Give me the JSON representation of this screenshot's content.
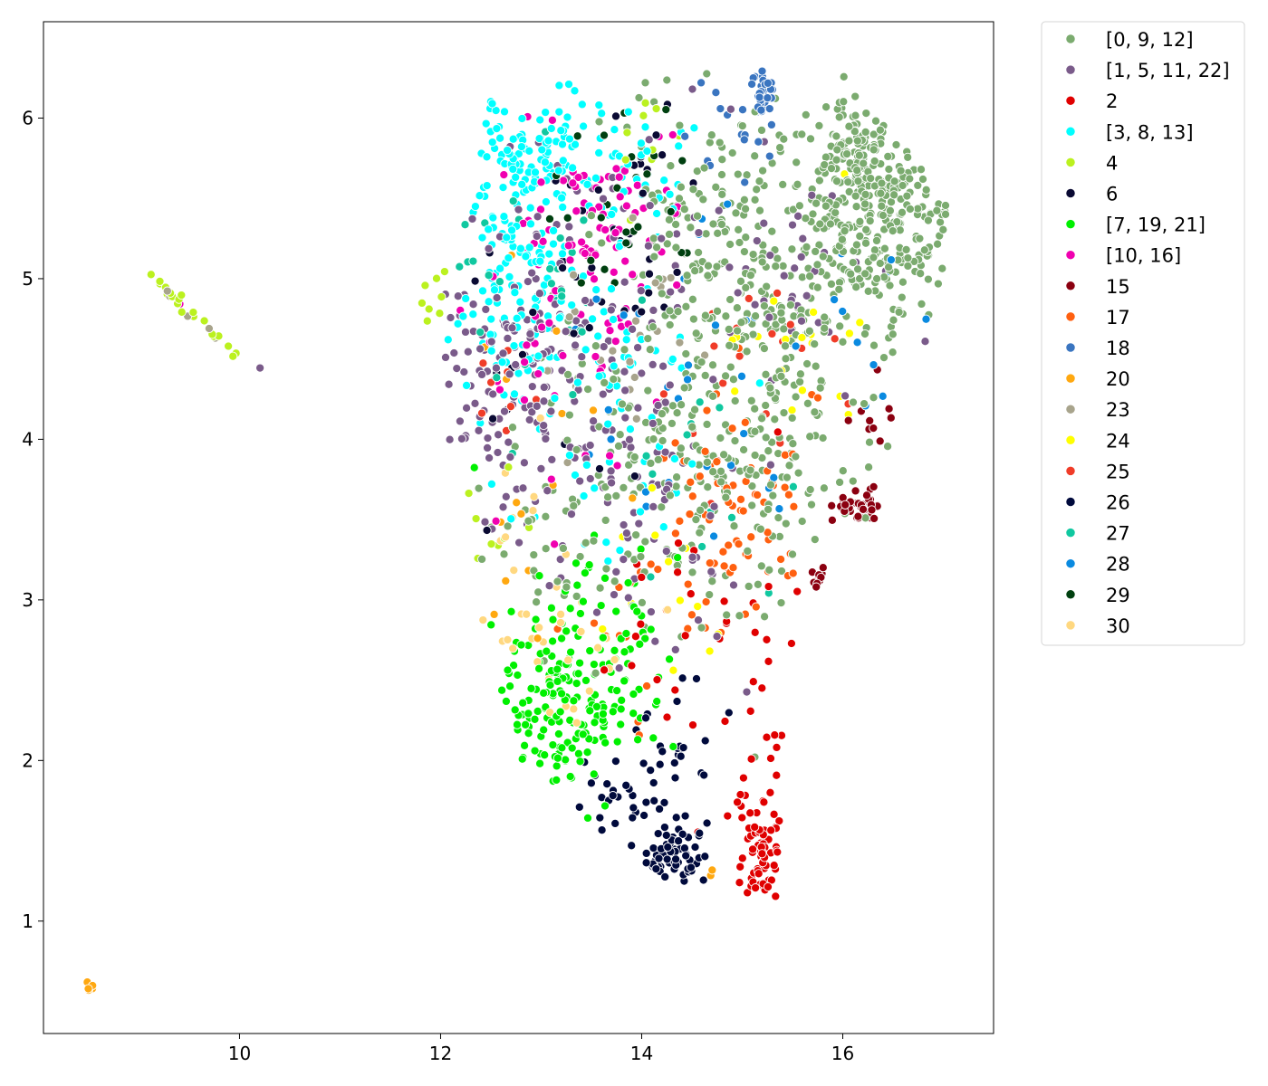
{
  "chart_data": {
    "type": "scatter",
    "title": "",
    "xlabel": "",
    "ylabel": "",
    "xlim": [
      8.05,
      17.5
    ],
    "ylim": [
      0.3,
      6.6
    ],
    "xticks": [
      10,
      12,
      14,
      16
    ],
    "yticks": [
      1,
      2,
      3,
      4,
      5,
      6
    ],
    "grid": false,
    "legend_placement": "outside-top-right",
    "series": [
      {
        "name": "[0, 9, 12]",
        "color": "#7bab6f",
        "clusters": [
          {
            "cx": 16.3,
            "cy": 5.45,
            "sx": 0.45,
            "sy": 0.35,
            "n": 300
          },
          {
            "cx": 15.2,
            "cy": 4.7,
            "sx": 0.6,
            "sy": 0.5,
            "n": 200
          },
          {
            "cx": 14.6,
            "cy": 5.3,
            "sx": 0.5,
            "sy": 0.5,
            "n": 110
          },
          {
            "cx": 16.2,
            "cy": 5.75,
            "sx": 0.15,
            "sy": 0.12,
            "n": 60
          },
          {
            "cx": 15.3,
            "cy": 3.7,
            "sx": 0.45,
            "sy": 0.4,
            "n": 70
          },
          {
            "cx": 13.5,
            "cy": 3.4,
            "sx": 0.7,
            "sy": 0.6,
            "n": 80
          },
          {
            "cx": 14.2,
            "cy": 4.0,
            "sx": 0.7,
            "sy": 0.5,
            "n": 80
          }
        ]
      },
      {
        "name": "[1, 5, 11, 22]",
        "color": "#7a5b8a",
        "clusters": [
          {
            "cx": 12.6,
            "cy": 4.3,
            "sx": 0.35,
            "sy": 0.4,
            "n": 90
          },
          {
            "cx": 13.5,
            "cy": 4.6,
            "sx": 0.6,
            "sy": 0.6,
            "n": 120
          },
          {
            "cx": 14.0,
            "cy": 3.5,
            "sx": 0.6,
            "sy": 0.5,
            "n": 60
          },
          {
            "cx": 15.5,
            "cy": 5.1,
            "sx": 0.5,
            "sy": 0.4,
            "n": 40
          },
          {
            "cx": 9.8,
            "cy": 4.66,
            "sx": 0.01,
            "sy": 0.01,
            "n": 1
          }
        ]
      },
      {
        "name": "2",
        "color": "#e00000",
        "clusters": [
          {
            "cx": 15.2,
            "cy": 1.4,
            "sx": 0.12,
            "sy": 0.15,
            "n": 60
          },
          {
            "cx": 15.2,
            "cy": 2.0,
            "sx": 0.2,
            "sy": 0.35,
            "n": 25
          },
          {
            "cx": 14.6,
            "cy": 2.8,
            "sx": 0.6,
            "sy": 0.5,
            "n": 30
          }
        ]
      },
      {
        "name": "[3, 8, 13]",
        "color": "#00ffff",
        "clusters": [
          {
            "cx": 12.9,
            "cy": 5.8,
            "sx": 0.35,
            "sy": 0.25,
            "n": 110
          },
          {
            "cx": 12.8,
            "cy": 5.0,
            "sx": 0.4,
            "sy": 0.45,
            "n": 120
          },
          {
            "cx": 13.6,
            "cy": 4.3,
            "sx": 0.5,
            "sy": 0.5,
            "n": 70
          },
          {
            "cx": 13.9,
            "cy": 5.7,
            "sx": 0.3,
            "sy": 0.2,
            "n": 30
          }
        ]
      },
      {
        "name": "4",
        "color": "#bbf11f",
        "clusters": [
          {
            "cx": 9.55,
            "cy": 4.77,
            "sx": 0.15,
            "sy": 0.1,
            "n": 20
          },
          {
            "cx": 11.9,
            "cy": 4.87,
            "sx": 0.08,
            "sy": 0.07,
            "n": 8
          },
          {
            "cx": 14.1,
            "cy": 5.9,
            "sx": 0.2,
            "sy": 0.15,
            "n": 10
          },
          {
            "cx": 12.6,
            "cy": 3.5,
            "sx": 0.2,
            "sy": 0.2,
            "n": 8
          }
        ]
      },
      {
        "name": "6",
        "color": "#0a0a33",
        "clusters": [
          {
            "cx": 13.9,
            "cy": 5.4,
            "sx": 0.5,
            "sy": 0.4,
            "n": 25
          },
          {
            "cx": 13.0,
            "cy": 4.4,
            "sx": 0.6,
            "sy": 0.5,
            "n": 20
          }
        ]
      },
      {
        "name": "[7, 19, 21]",
        "color": "#00f000",
        "clusters": [
          {
            "cx": 13.2,
            "cy": 2.3,
            "sx": 0.3,
            "sy": 0.3,
            "n": 130
          },
          {
            "cx": 13.5,
            "cy": 2.9,
            "sx": 0.4,
            "sy": 0.3,
            "n": 50
          },
          {
            "cx": 13.9,
            "cy": 2.4,
            "sx": 0.3,
            "sy": 0.25,
            "n": 25
          }
        ]
      },
      {
        "name": "[10, 16]",
        "color": "#f000b0",
        "clusters": [
          {
            "cx": 13.5,
            "cy": 5.4,
            "sx": 0.4,
            "sy": 0.3,
            "n": 60
          },
          {
            "cx": 13.3,
            "cy": 4.6,
            "sx": 0.5,
            "sy": 0.5,
            "n": 45
          },
          {
            "cx": 9.3,
            "cy": 4.92,
            "sx": 0.01,
            "sy": 0.01,
            "n": 1
          }
        ]
      },
      {
        "name": "15",
        "color": "#8b0010",
        "clusters": [
          {
            "cx": 16.15,
            "cy": 3.55,
            "sx": 0.13,
            "sy": 0.08,
            "n": 40
          },
          {
            "cx": 15.85,
            "cy": 3.1,
            "sx": 0.05,
            "sy": 0.05,
            "n": 10
          },
          {
            "cx": 16.4,
            "cy": 4.1,
            "sx": 0.15,
            "sy": 0.15,
            "n": 10
          }
        ]
      },
      {
        "name": "17",
        "color": "#ff6010",
        "clusters": [
          {
            "cx": 15.0,
            "cy": 3.6,
            "sx": 0.4,
            "sy": 0.35,
            "n": 60
          },
          {
            "cx": 14.3,
            "cy": 2.9,
            "sx": 0.5,
            "sy": 0.4,
            "n": 25
          }
        ]
      },
      {
        "name": "18",
        "color": "#3a75c0",
        "clusters": [
          {
            "cx": 15.2,
            "cy": 6.15,
            "sx": 0.06,
            "sy": 0.08,
            "n": 30
          },
          {
            "cx": 14.9,
            "cy": 5.9,
            "sx": 0.2,
            "sy": 0.15,
            "n": 15
          }
        ]
      },
      {
        "name": "20",
        "color": "#ffa810",
        "clusters": [
          {
            "cx": 8.5,
            "cy": 0.59,
            "sx": 0.02,
            "sy": 0.02,
            "n": 7
          },
          {
            "cx": 14.7,
            "cy": 1.3,
            "sx": 0.02,
            "sy": 0.02,
            "n": 2
          },
          {
            "cx": 13.0,
            "cy": 3.9,
            "sx": 0.5,
            "sy": 0.5,
            "n": 15
          }
        ]
      },
      {
        "name": "23",
        "color": "#a8a48c",
        "clusters": [
          {
            "cx": 13.9,
            "cy": 4.8,
            "sx": 0.5,
            "sy": 0.5,
            "n": 25
          },
          {
            "cx": 9.35,
            "cy": 4.88,
            "sx": 0.05,
            "sy": 0.03,
            "n": 5
          }
        ]
      },
      {
        "name": "24",
        "color": "#ffff00",
        "clusters": [
          {
            "cx": 15.6,
            "cy": 4.4,
            "sx": 0.4,
            "sy": 0.4,
            "n": 20
          },
          {
            "cx": 14.3,
            "cy": 3.0,
            "sx": 0.4,
            "sy": 0.4,
            "n": 12
          }
        ]
      },
      {
        "name": "25",
        "color": "#f03c28",
        "clusters": [
          {
            "cx": 15.2,
            "cy": 4.2,
            "sx": 0.5,
            "sy": 0.4,
            "n": 18
          },
          {
            "cx": 12.5,
            "cy": 4.3,
            "sx": 0.2,
            "sy": 0.2,
            "n": 8
          }
        ]
      },
      {
        "name": "26",
        "color": "#000a3c",
        "clusters": [
          {
            "cx": 14.3,
            "cy": 1.4,
            "sx": 0.18,
            "sy": 0.1,
            "n": 60
          },
          {
            "cx": 13.9,
            "cy": 1.7,
            "sx": 0.35,
            "sy": 0.2,
            "n": 40
          },
          {
            "cx": 14.4,
            "cy": 2.1,
            "sx": 0.3,
            "sy": 0.2,
            "n": 15
          }
        ]
      },
      {
        "name": "27",
        "color": "#10c8a0",
        "clusters": [
          {
            "cx": 12.9,
            "cy": 4.9,
            "sx": 0.4,
            "sy": 0.4,
            "n": 30
          },
          {
            "cx": 14.6,
            "cy": 3.8,
            "sx": 0.4,
            "sy": 0.4,
            "n": 12
          }
        ]
      },
      {
        "name": "28",
        "color": "#0a8ae0",
        "clusters": [
          {
            "cx": 14.3,
            "cy": 4.3,
            "sx": 0.6,
            "sy": 0.6,
            "n": 30
          },
          {
            "cx": 16.2,
            "cy": 4.7,
            "sx": 0.4,
            "sy": 0.4,
            "n": 10
          }
        ]
      },
      {
        "name": "29",
        "color": "#004010",
        "clusters": [
          {
            "cx": 14.0,
            "cy": 5.5,
            "sx": 0.45,
            "sy": 0.3,
            "n": 30
          }
        ]
      },
      {
        "name": "30",
        "color": "#ffd880",
        "clusters": [
          {
            "cx": 12.9,
            "cy": 2.9,
            "sx": 0.4,
            "sy": 0.45,
            "n": 30
          },
          {
            "cx": 13.6,
            "cy": 2.6,
            "sx": 0.3,
            "sy": 0.2,
            "n": 8
          }
        ]
      }
    ]
  }
}
